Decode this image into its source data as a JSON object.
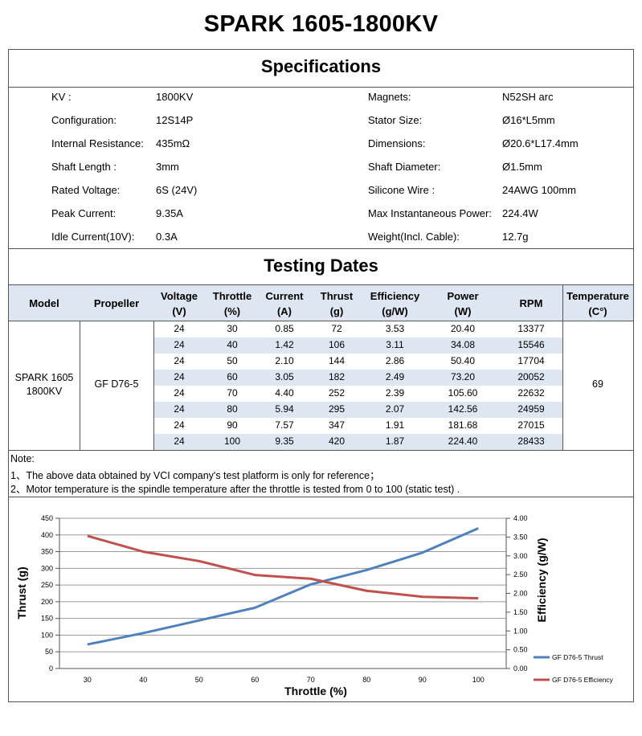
{
  "title": "SPARK 1605-1800KV",
  "specifications": {
    "heading": "Specifications",
    "left": [
      {
        "label": "KV :",
        "value": "1800KV"
      },
      {
        "label": "Configuration:",
        "value": "12S14P"
      },
      {
        "label": "Internal Resistance:",
        "value": "435mΩ"
      },
      {
        "label": "Shaft Length :",
        "value": "3mm"
      },
      {
        "label": "Rated Voltage:",
        "value": "6S  (24V)"
      },
      {
        "label": "Peak Current:",
        "value": "9.35A"
      },
      {
        "label": "Idle Current(10V):",
        "value": "0.3A"
      }
    ],
    "right": [
      {
        "label": "Magnets:",
        "value": "N52SH   arc"
      },
      {
        "label": "Stator Size:",
        "value": "Ø16*L5mm"
      },
      {
        "label": "Dimensions:",
        "value": "Ø20.6*L17.4mm"
      },
      {
        "label": "Shaft Diameter:",
        "value": "Ø1.5mm"
      },
      {
        "label": "Silicone Wire :",
        "value": "24AWG 100mm"
      },
      {
        "label": "Max Instantaneous Power:",
        "value": "224.4W"
      },
      {
        "label": "Weight(Incl. Cable):",
        "value": "12.7g"
      }
    ]
  },
  "testing": {
    "heading": "Testing Dates",
    "columns": [
      {
        "line1": "Model",
        "line2": ""
      },
      {
        "line1": "Propeller",
        "line2": ""
      },
      {
        "line1": "Voltage",
        "line2": "(V)"
      },
      {
        "line1": "Throttle",
        "line2": "(%)"
      },
      {
        "line1": "Current",
        "line2": "(A)"
      },
      {
        "line1": "Thrust",
        "line2": "(g)"
      },
      {
        "line1": "Efficiency",
        "line2": "(g/W)"
      },
      {
        "line1": "Power",
        "line2": "(W)"
      },
      {
        "line1": "RPM",
        "line2": ""
      },
      {
        "line1": "Temperature",
        "line2": "(C°)"
      }
    ],
    "model_line1": "SPARK 1605",
    "model_line2": "1800KV",
    "propeller": "GF D76-5",
    "temperature": "69",
    "rows": [
      [
        "24",
        "30",
        "0.85",
        "72",
        "3.53",
        "20.40",
        "13377"
      ],
      [
        "24",
        "40",
        "1.42",
        "106",
        "3.11",
        "34.08",
        "15546"
      ],
      [
        "24",
        "50",
        "2.10",
        "144",
        "2.86",
        "50.40",
        "17704"
      ],
      [
        "24",
        "60",
        "3.05",
        "182",
        "2.49",
        "73.20",
        "20052"
      ],
      [
        "24",
        "70",
        "4.40",
        "252",
        "2.39",
        "105.60",
        "22632"
      ],
      [
        "24",
        "80",
        "5.94",
        "295",
        "2.07",
        "142.56",
        "24959"
      ],
      [
        "24",
        "90",
        "7.57",
        "347",
        "1.91",
        "181.68",
        "27015"
      ],
      [
        "24",
        "100",
        "9.35",
        "420",
        "1.87",
        "224.40",
        "28433"
      ]
    ]
  },
  "notes": {
    "label": "Note:",
    "line1": "1、The above data obtained by VCI company's test platform is only for reference；",
    "line2": "2、Motor temperature is the spindle temperature after the throttle is tested from 0 to 100   (static test)  ."
  },
  "colors": {
    "header_fill": "#dde6f1",
    "band_fill": "#dde6f1",
    "thrust_line": "#4f81bd",
    "efficiency_line": "#c0504d",
    "grid": "#9a9a9a"
  },
  "chart_data": {
    "type": "line",
    "xlabel": "Throttle  (%)",
    "ylabel_left": "Thrust  (g)",
    "ylabel_right": "Efficiency (g/W)",
    "x": [
      30,
      40,
      50,
      60,
      70,
      80,
      90,
      100
    ],
    "x_ticks": [
      "30",
      "40",
      "50",
      "60",
      "70",
      "80",
      "90",
      "100"
    ],
    "y_left_ticks": [
      "0",
      "50",
      "100",
      "150",
      "200",
      "250",
      "300",
      "350",
      "400",
      "450"
    ],
    "y_right_ticks": [
      "0.00",
      "0.50",
      "1.00",
      "1.50",
      "2.00",
      "2.50",
      "3.00",
      "3.50",
      "4.00"
    ],
    "ylim_left": [
      0,
      450
    ],
    "ylim_right": [
      0,
      4
    ],
    "grid": true,
    "legend_position": "right",
    "series": [
      {
        "name": "GF D76-5 Thrust",
        "axis": "left",
        "values": [
          72,
          106,
          144,
          182,
          252,
          295,
          347,
          420
        ]
      },
      {
        "name": "GF D76-5 Efficiency",
        "axis": "right",
        "values": [
          3.53,
          3.11,
          2.86,
          2.49,
          2.39,
          2.07,
          1.91,
          1.87
        ]
      }
    ]
  }
}
